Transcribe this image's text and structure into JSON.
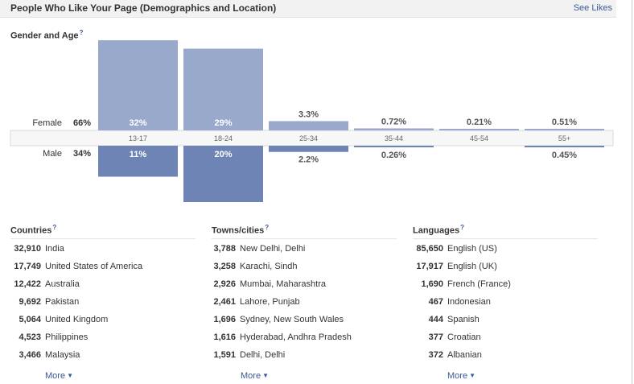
{
  "header": {
    "title": "People Who Like Your Page (Demographics and Location)",
    "see_likes": "See Likes"
  },
  "help_mark": "?",
  "chart_data": {
    "type": "bar",
    "title": "Gender and Age",
    "categories": [
      "13-17",
      "18-24",
      "25-34",
      "35-44",
      "45-54",
      "55+"
    ],
    "series": [
      {
        "name": "Female",
        "total": "66%",
        "values": [
          32,
          29,
          3.3,
          0.72,
          0.21,
          0.51
        ],
        "labels": [
          "32%",
          "29%",
          "3.3%",
          "0.72%",
          "0.21%",
          "0.51%"
        ]
      },
      {
        "name": "Male",
        "total": "34%",
        "values": [
          11,
          20,
          2.2,
          0.26,
          0,
          0.45
        ],
        "labels": [
          "11%",
          "20%",
          "2.2%",
          "0.26%",
          "",
          "0.45%"
        ]
      }
    ],
    "colors": {
      "female": "#98a9cb",
      "male": "#6d84b4"
    },
    "layout": "mirrored bars: female above the age axis, male below",
    "legend": "none"
  },
  "countries": {
    "title": "Countries",
    "more": "More",
    "items": [
      {
        "count": "32,910",
        "name": "India"
      },
      {
        "count": "17,749",
        "name": "United States of America"
      },
      {
        "count": "12,422",
        "name": "Australia"
      },
      {
        "count": "9,692",
        "name": "Pakistan"
      },
      {
        "count": "5,064",
        "name": "United Kingdom"
      },
      {
        "count": "4,523",
        "name": "Philippines"
      },
      {
        "count": "3,466",
        "name": "Malaysia"
      }
    ]
  },
  "cities": {
    "title": "Towns/cities",
    "more": "More",
    "items": [
      {
        "count": "3,788",
        "name": "New Delhi, Delhi"
      },
      {
        "count": "3,258",
        "name": "Karachi, Sindh"
      },
      {
        "count": "2,926",
        "name": "Mumbai, Maharashtra"
      },
      {
        "count": "2,461",
        "name": "Lahore, Punjab"
      },
      {
        "count": "1,696",
        "name": "Sydney, New South Wales"
      },
      {
        "count": "1,616",
        "name": "Hyderabad, Andhra Pradesh"
      },
      {
        "count": "1,591",
        "name": "Delhi, Delhi"
      }
    ]
  },
  "languages": {
    "title": "Languages",
    "more": "More",
    "items": [
      {
        "count": "85,650",
        "name": "English (US)"
      },
      {
        "count": "17,917",
        "name": "English (UK)"
      },
      {
        "count": "1,690",
        "name": "French (France)"
      },
      {
        "count": "467",
        "name": "Indonesian"
      },
      {
        "count": "444",
        "name": "Spanish"
      },
      {
        "count": "377",
        "name": "Croatian"
      },
      {
        "count": "372",
        "name": "Albanian"
      }
    ]
  }
}
